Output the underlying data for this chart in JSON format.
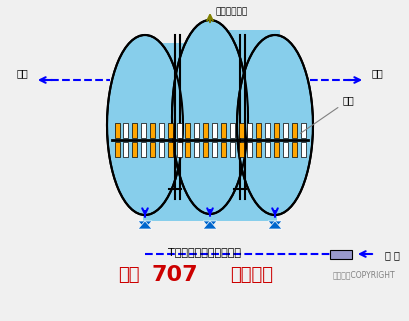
{
  "bg_color": "#f0f0f0",
  "tank_fill": "#87CEEB",
  "tank_edge": "#000000",
  "title_text": "T型氧化沟系统工艺流程",
  "subtitle_text": "化工707  剪辑制作",
  "copyright_text": "东方仿真COPYRIGHT",
  "label_outlet_left": "出水",
  "label_outlet_right": "出水",
  "label_inlet": "进 水",
  "label_sludge": "剩余污泥排放",
  "label_brush": "转刷",
  "dashed_color": "#0000FF",
  "arrow_color": "#0000FF",
  "sludge_arrow_color": "#808000",
  "brush_orange": "#FFA500",
  "brush_white": "#FFFFFF",
  "valve_color": "#0066CC",
  "pipe_box_color": "#9999CC"
}
